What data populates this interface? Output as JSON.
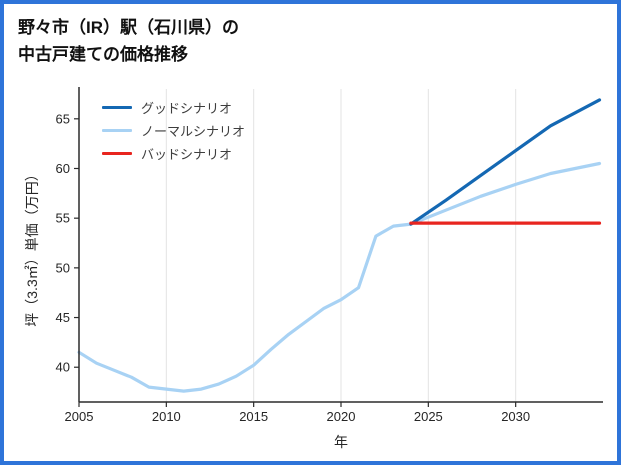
{
  "header": {
    "title_line1": "野々市（IR）駅（石川県）の",
    "title_line2": "中古戸建ての価格推移"
  },
  "colors": {
    "frame_border": "#2e74d9",
    "good_line": "#1468b3",
    "normal_line": "#a8d2f4",
    "bad_line": "#e8251f",
    "grid": "#e3e3e3",
    "axis": "#2b2b2b"
  },
  "chart_data": {
    "type": "line",
    "title": "野々市（IR）駅（石川県）の中古戸建ての価格推移",
    "xlabel": "年",
    "ylabel": "坪（3.3㎡）単価（万円）",
    "xlim": [
      2005,
      2035
    ],
    "ylim": [
      36.5,
      68
    ],
    "xticks": [
      2005,
      2010,
      2015,
      2020,
      2025,
      2030
    ],
    "yticks": [
      40,
      45,
      50,
      55,
      60,
      65
    ],
    "grid": "vertical",
    "legend_position": "upper-left",
    "draw_order": [
      1,
      0,
      2
    ],
    "series": [
      {
        "name": "グッドシナリオ",
        "color": "#1468b3",
        "width": 3.2,
        "x": [
          2024,
          2026,
          2028,
          2030,
          2032,
          2034.8
        ],
        "y": [
          54.4,
          56.8,
          59.3,
          61.8,
          64.3,
          66.9
        ]
      },
      {
        "name": "ノーマルシナリオ",
        "color": "#a8d2f4",
        "width": 3.2,
        "x": [
          2005,
          2006,
          2007,
          2008,
          2009,
          2010,
          2011,
          2012,
          2013,
          2014,
          2015,
          2016,
          2017,
          2018,
          2019,
          2020,
          2021,
          2022,
          2023,
          2024,
          2026,
          2028,
          2030,
          2032,
          2034.8
        ],
        "y": [
          41.5,
          40.4,
          39.7,
          39.0,
          38.0,
          37.8,
          37.6,
          37.8,
          38.3,
          39.1,
          40.2,
          41.8,
          43.3,
          44.6,
          45.9,
          46.8,
          48.0,
          53.2,
          54.2,
          54.4,
          55.8,
          57.2,
          58.4,
          59.5,
          60.5
        ]
      },
      {
        "name": "バッドシナリオ",
        "color": "#e8251f",
        "width": 3.2,
        "x": [
          2024,
          2034.8
        ],
        "y": [
          54.5,
          54.5
        ]
      }
    ]
  }
}
